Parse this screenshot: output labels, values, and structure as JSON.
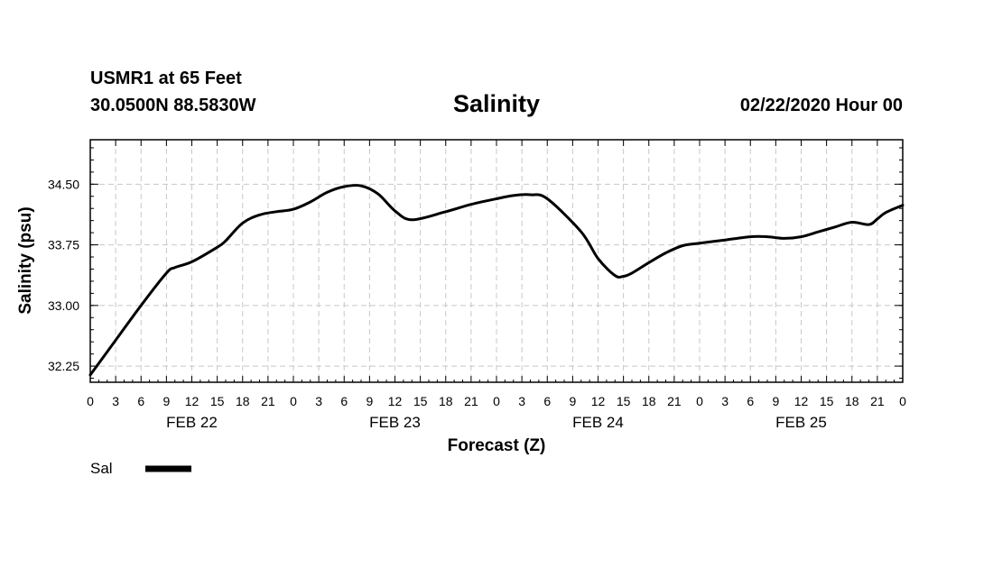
{
  "header": {
    "station": "USMR1 at 65 Feet",
    "location": "30.0500N 88.5830W",
    "title": "Salinity",
    "datetime": "02/22/2020 Hour 00"
  },
  "chart_data": {
    "type": "line",
    "title": "Salinity",
    "xlabel": "Forecast (Z)",
    "ylabel": "Salinity (psu)",
    "x_unit": "forecast hour from 02/22/2020 00Z",
    "xlim": [
      0,
      96
    ],
    "ylim": [
      32.05,
      35.05
    ],
    "yticks": [
      32.25,
      33.0,
      33.75,
      34.5
    ],
    "ytick_labels": [
      "32.25",
      "33.00",
      "33.75",
      "34.50"
    ],
    "xtick_labels": [
      "0",
      "3",
      "6",
      "9",
      "12",
      "15",
      "18",
      "21",
      "0",
      "3",
      "6",
      "9",
      "12",
      "15",
      "18",
      "21",
      "0",
      "3",
      "6",
      "9",
      "12",
      "15",
      "18",
      "21",
      "0",
      "3",
      "6",
      "9",
      "12",
      "15",
      "18",
      "21",
      "0"
    ],
    "day_labels": [
      "FEB 22",
      "FEB 23",
      "FEB 24",
      "FEB 25"
    ],
    "grid": true,
    "legend": "bottom-left",
    "series": [
      {
        "name": "Sal",
        "color": "#000000",
        "x": [
          0,
          3,
          6,
          9,
          10,
          12,
          15,
          16,
          18,
          20,
          22,
          24,
          26,
          28,
          30,
          32,
          34,
          36,
          38,
          42,
          45,
          48,
          50,
          52,
          54,
          58,
          60,
          62,
          63,
          64,
          66,
          68,
          70,
          72,
          75,
          78,
          80,
          82,
          84,
          86,
          88,
          90,
          92,
          93,
          94,
          96
        ],
        "y": [
          32.14,
          32.57,
          33.0,
          33.4,
          33.47,
          33.54,
          33.72,
          33.8,
          34.02,
          34.12,
          34.16,
          34.19,
          34.28,
          34.4,
          34.47,
          34.48,
          34.38,
          34.17,
          34.06,
          34.16,
          34.25,
          34.32,
          34.36,
          34.37,
          34.32,
          33.91,
          33.58,
          33.37,
          33.36,
          33.4,
          33.53,
          33.65,
          33.74,
          33.77,
          33.81,
          33.85,
          33.85,
          33.83,
          33.85,
          33.91,
          33.97,
          34.03,
          34.0,
          34.07,
          34.15,
          34.24
        ]
      }
    ]
  }
}
